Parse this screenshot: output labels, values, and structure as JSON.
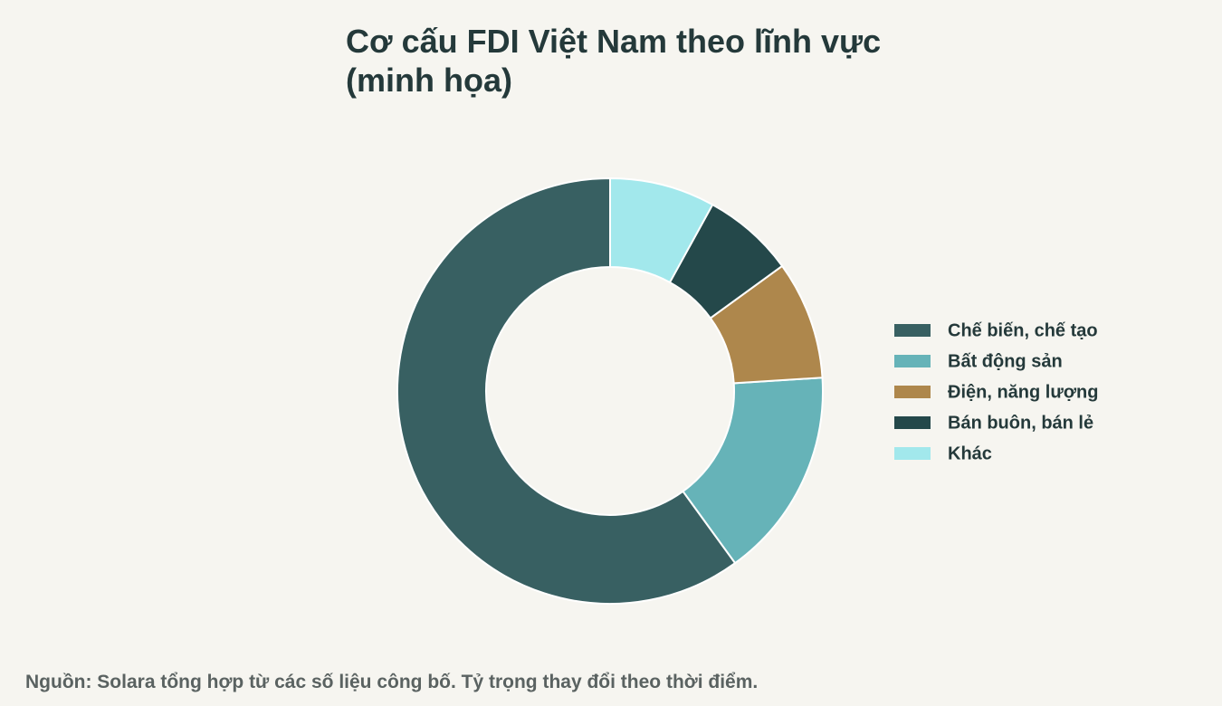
{
  "chart_data": {
    "type": "donut",
    "title": "Cơ cấu FDI Việt Nam theo lĩnh vực (minh họa)",
    "categories": [
      "Chế biến, chế tạo",
      "Bất động sản",
      "Điện, năng lượng",
      "Bán buôn, bán lẻ",
      "Khác"
    ],
    "values": [
      60,
      16,
      9,
      7,
      8
    ],
    "colors": [
      "#386062",
      "#66b3b8",
      "#ae874c",
      "#24484a",
      "#a2e8ec"
    ],
    "legend": "right",
    "source": "Nguồn: Solara tổng hợp từ các số liệu công bố. Tỷ trọng thay đổi theo thời điểm."
  }
}
